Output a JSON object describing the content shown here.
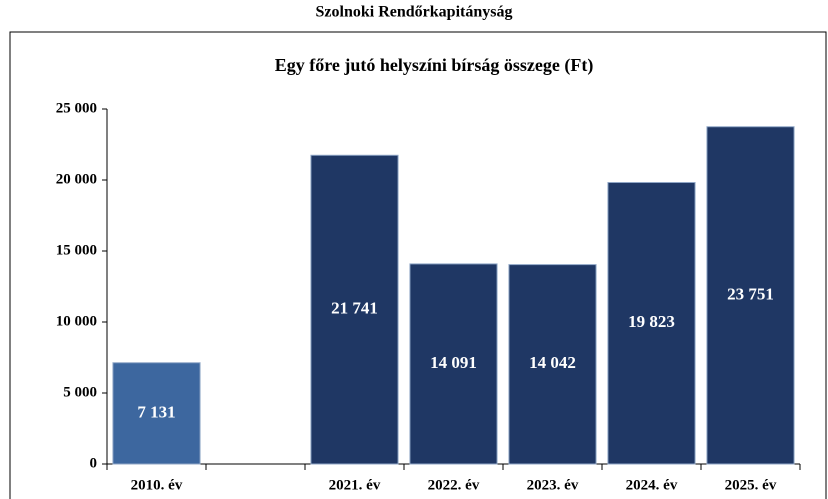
{
  "chart_data": {
    "type": "bar",
    "title": "Szolnoki Rendőrkapitányság",
    "subtitle": "Egy főre jutó helyszíni bírság összege (Ft)",
    "categories": [
      "2010. év",
      null,
      "2021. év",
      "2022. év",
      "2023. év",
      "2024. év",
      "2025. év"
    ],
    "values": [
      7131,
      null,
      21741,
      14091,
      14042,
      19823,
      23751
    ],
    "value_labels": [
      "7 131",
      null,
      "21 741",
      "14 091",
      "14 042",
      "19 823",
      "23 751"
    ],
    "colors": [
      "#3d679f",
      null,
      "#1f3764",
      "#1f3764",
      "#1f3764",
      "#1f3764",
      "#1f3764"
    ],
    "ylim": [
      0,
      25000
    ],
    "yticks": [
      0,
      {
        "value": 5000,
        "label": "5 000"
      },
      {
        "value": 10000,
        "label": "10 000"
      },
      {
        "value": 15000,
        "label": "15 000"
      },
      {
        "value": 20000,
        "label": "20 000"
      },
      {
        "value": 25000,
        "label": "25 000"
      }
    ],
    "grid": false
  }
}
